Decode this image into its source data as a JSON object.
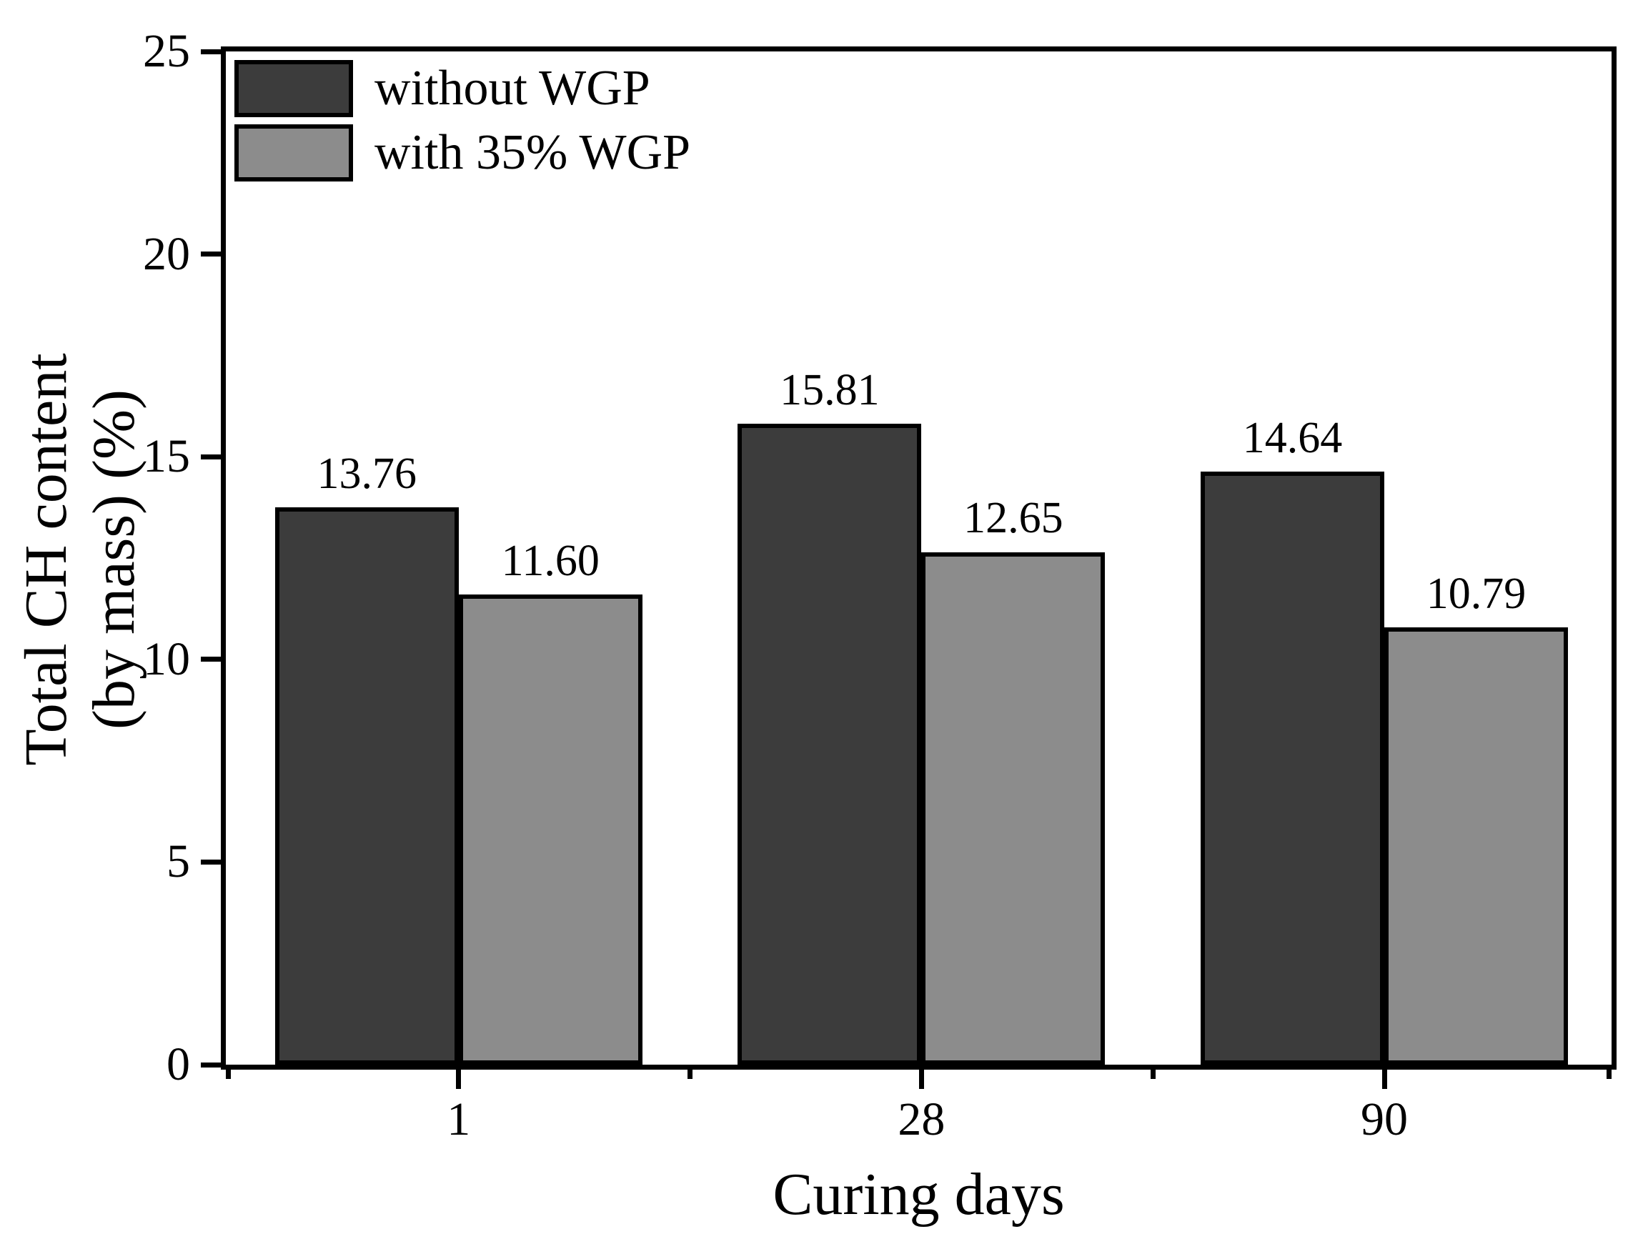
{
  "chart_data": {
    "type": "bar",
    "title": "",
    "xlabel": "Curing days",
    "ylabel": "Total CH content (by mass) (%)",
    "ylabel_lines": [
      "Total CH content",
      "(by mass) (%)"
    ],
    "categories": [
      "1",
      "28",
      "90"
    ],
    "series": [
      {
        "name": "without WGP",
        "color": "#3c3c3c",
        "values": [
          13.76,
          15.81,
          14.64
        ],
        "labels": [
          "13.76",
          "15.81",
          "14.64"
        ]
      },
      {
        "name": "with 35% WGP",
        "color": "#8c8c8c",
        "values": [
          11.6,
          12.65,
          10.79
        ],
        "labels": [
          "11.60",
          "12.65",
          "10.79"
        ]
      }
    ],
    "ylim": [
      0,
      25
    ],
    "yticks": [
      "0",
      "5",
      "10",
      "15",
      "20",
      "25"
    ],
    "grid": false,
    "legend_position": "top-left",
    "bar_outline_color": "#000000",
    "axis_color": "#000000"
  }
}
